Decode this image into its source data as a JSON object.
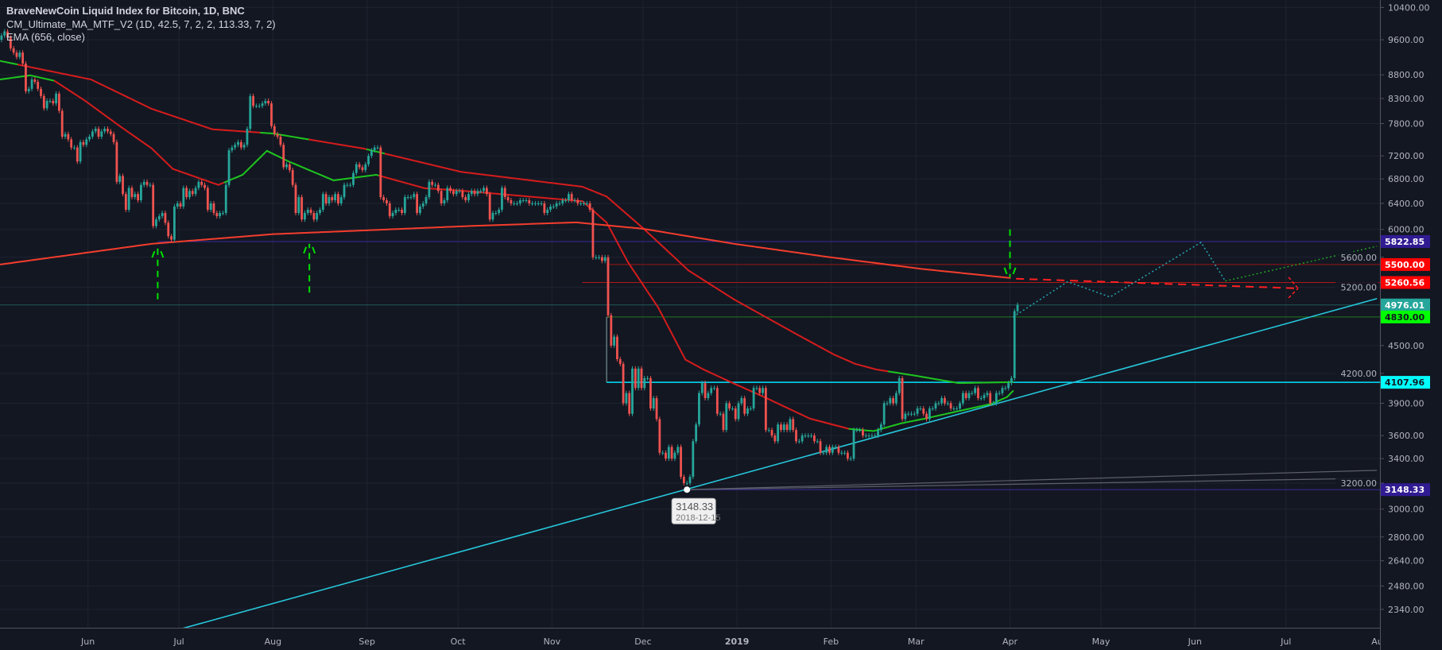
{
  "legend": {
    "title": "BraveNewCoin Liquid Index for Bitcoin, 1D, BNC",
    "indicator1": "CM_Ultimate_MA_MTF_V2 (1D, 42.5, 7, 2, 2, 113.33, 7, 2)",
    "indicator2": "EMA (656, close)"
  },
  "colors": {
    "background": "#131722",
    "grid": "#1f2330",
    "up": "#26a69a",
    "down": "#ef5350",
    "ma_red": "#d41c1c",
    "ema_red": "#f23d2d",
    "ma_green": "#1ec41e",
    "trendline": "#26c6da",
    "axis_text": "#b2b5be"
  },
  "chart_data": {
    "type": "candlestick",
    "title": "BraveNewCoin Liquid Index for Bitcoin, 1D, BNC",
    "y_scale": "log",
    "ylim": [
      2236,
      10594
    ],
    "xlim": [
      "2018-05-03",
      "2019-07-31"
    ],
    "grid": true,
    "y_ticks": [
      "10400.00",
      "9600.00",
      "8800.00",
      "8300.00",
      "7800.00",
      "7200.00",
      "6800.00",
      "6400.00",
      "6000.00",
      "5600.00",
      "5200.00",
      "4500.00",
      "4200.00",
      "3900.00",
      "3600.00",
      "3400.00",
      "3200.00",
      "3000.00",
      "2800.00",
      "2640.00",
      "2480.00",
      "2340.00"
    ],
    "x_ticks": [
      {
        "date": "2018-06-01",
        "label": "Jun"
      },
      {
        "date": "2018-07-01",
        "label": "Jul"
      },
      {
        "date": "2018-08-01",
        "label": "Aug"
      },
      {
        "date": "2018-09-01",
        "label": "Sep"
      },
      {
        "date": "2018-10-01",
        "label": "Oct"
      },
      {
        "date": "2018-11-01",
        "label": "Nov"
      },
      {
        "date": "2018-12-01",
        "label": "Dec"
      },
      {
        "date": "2019-01-01",
        "label": "2019",
        "bold": true
      },
      {
        "date": "2019-02-01",
        "label": "Feb"
      },
      {
        "date": "2019-03-01",
        "label": "Mar"
      },
      {
        "date": "2019-04-01",
        "label": "Apr"
      },
      {
        "date": "2019-05-01",
        "label": "May"
      },
      {
        "date": "2019-06-01",
        "label": "Jun"
      },
      {
        "date": "2019-07-01",
        "label": "Jul"
      },
      {
        "date": "2019-08-01",
        "label": "Aug"
      }
    ],
    "candles": {
      "start": "2018-05-03",
      "first_open": 9600,
      "close": [
        9700,
        9800,
        9650,
        9400,
        9300,
        9200,
        9300,
        9050,
        8450,
        8500,
        8700,
        8650,
        8500,
        8350,
        8100,
        8250,
        8250,
        8200,
        8400,
        8050,
        7550,
        7600,
        7500,
        7350,
        7350,
        7100,
        7450,
        7400,
        7500,
        7550,
        7650,
        7700,
        7550,
        7650,
        7700,
        7650,
        7600,
        7450,
        6750,
        6850,
        6550,
        6300,
        6650,
        6500,
        6550,
        6450,
        6700,
        6750,
        6700,
        6700,
        6050,
        6150,
        6200,
        6250,
        6100,
        5900,
        5850,
        6350,
        6400,
        6350,
        6650,
        6500,
        6600,
        6550,
        6650,
        6750,
        6700,
        6650,
        6300,
        6400,
        6250,
        6200,
        6250,
        6250,
        6700,
        7300,
        7350,
        7400,
        7450,
        7350,
        7400,
        7700,
        8350,
        8150,
        8150,
        8150,
        8200,
        8250,
        8200,
        7750,
        7600,
        7550,
        7400,
        7000,
        7050,
        6950,
        6700,
        6250,
        6500,
        6150,
        6250,
        6300,
        6250,
        6150,
        6250,
        6300,
        6550,
        6400,
        6500,
        6450,
        6550,
        6400,
        6500,
        6700,
        6700,
        6700,
        6900,
        7050,
        7000,
        6950,
        7050,
        7200,
        7300,
        7350,
        7350,
        6500,
        6450,
        6400,
        6200,
        6250,
        6300,
        6300,
        6250,
        6500,
        6500,
        6500,
        6550,
        6250,
        6350,
        6400,
        6500,
        6750,
        6700,
        6700,
        6600,
        6400,
        6450,
        6650,
        6600,
        6550,
        6600,
        6600,
        6500,
        6450,
        6550,
        6600,
        6550,
        6600,
        6600,
        6650,
        6550,
        6150,
        6250,
        6250,
        6300,
        6650,
        6500,
        6450,
        6400,
        6400,
        6400,
        6450,
        6450,
        6450,
        6400,
        6400,
        6400,
        6400,
        6400,
        6250,
        6300,
        6350,
        6350,
        6400,
        6400,
        6450,
        6450,
        6550,
        6450,
        6450,
        6400,
        6400,
        6400,
        6400,
        6300,
        5600,
        5600,
        5600,
        5550,
        5600,
        4850,
        4500,
        4600,
        4350,
        4300,
        3900,
        4000,
        3800,
        4250,
        4050,
        4250,
        4050,
        4150,
        4150,
        3850,
        3950,
        3750,
        3450,
        3450,
        3400,
        3500,
        3400,
        3450,
        3500,
        3250,
        3200,
        3200,
        3250,
        3550,
        3700,
        4000,
        4100,
        3950,
        4000,
        4050,
        4050,
        3800,
        3800,
        3650,
        3900,
        3850,
        3850,
        3750,
        3900,
        3950,
        3800,
        3850,
        3850,
        4050,
        4050,
        4000,
        4050,
        3650,
        3650,
        3600,
        3550,
        3700,
        3650,
        3700,
        3650,
        3750,
        3650,
        3550,
        3550,
        3600,
        3600,
        3600,
        3600,
        3550,
        3550,
        3450,
        3450,
        3500,
        3450,
        3500,
        3500,
        3450,
        3450,
        3450,
        3400,
        3400,
        3650,
        3650,
        3650,
        3600,
        3600,
        3600,
        3600,
        3600,
        3650,
        3700,
        3900,
        3900,
        3950,
        3900,
        4000,
        4150,
        3750,
        3800,
        3800,
        3800,
        3800,
        3850,
        3850,
        3800,
        3750,
        3850,
        3850,
        3900,
        3900,
        3950,
        3900,
        3900,
        3850,
        3850,
        3850,
        3900,
        4000,
        3950,
        4000,
        4000,
        4050,
        3950,
        3950,
        3980,
        4000,
        3900,
        3900,
        4000,
        4000,
        4050,
        4050,
        4100,
        4150,
        4900,
        4976
      ]
    },
    "moving_averages": [
      {
        "id": "ma-slow",
        "points": [
          [
            "2018-05-03",
            9110
          ],
          [
            "2018-06-02",
            8700
          ],
          [
            "2018-06-22",
            8090
          ],
          [
            "2018-07-12",
            7690
          ],
          [
            "2018-08-01",
            7610
          ],
          [
            "2018-08-31",
            7330
          ],
          [
            "2018-10-02",
            6920
          ],
          [
            "2018-11-11",
            6670
          ],
          [
            "2018-11-19",
            6510
          ],
          [
            "2018-12-01",
            6020
          ],
          [
            "2018-12-16",
            5420
          ],
          [
            "2018-12-31",
            5045
          ],
          [
            "2019-01-20",
            4640
          ],
          [
            "2019-02-02",
            4400
          ],
          [
            "2019-02-09",
            4300
          ],
          [
            "2019-02-16",
            4240
          ],
          [
            "2019-03-01",
            4175
          ],
          [
            "2019-03-15",
            4100
          ],
          [
            "2019-04-02",
            4110
          ]
        ],
        "green_ranges": [
          [
            "2018-05-03",
            "2018-05-08"
          ],
          [
            "2018-07-28",
            "2018-08-12"
          ],
          [
            "2018-09-01",
            "2018-09-06"
          ],
          [
            "2019-02-20",
            "2019-04-02"
          ]
        ]
      },
      {
        "id": "ma-fast",
        "points": [
          [
            "2018-05-03",
            8700
          ],
          [
            "2018-05-13",
            8790
          ],
          [
            "2018-05-21",
            8670
          ],
          [
            "2018-05-31",
            8255
          ],
          [
            "2018-06-12",
            7730
          ],
          [
            "2018-06-22",
            7335
          ],
          [
            "2018-06-29",
            6970
          ],
          [
            "2018-07-14",
            6700
          ],
          [
            "2018-07-22",
            6870
          ],
          [
            "2018-07-30",
            7290
          ],
          [
            "2018-08-06",
            7105
          ],
          [
            "2018-08-21",
            6775
          ],
          [
            "2018-09-04",
            6870
          ],
          [
            "2018-09-20",
            6645
          ],
          [
            "2018-10-02",
            6605
          ],
          [
            "2018-11-11",
            6435
          ],
          [
            "2018-11-19",
            6105
          ],
          [
            "2018-11-26",
            5535
          ],
          [
            "2018-12-06",
            4945
          ],
          [
            "2018-12-15",
            4345
          ],
          [
            "2018-12-21",
            4240
          ],
          [
            "2018-12-31",
            4095
          ],
          [
            "2019-01-10",
            3960
          ],
          [
            "2019-01-25",
            3755
          ],
          [
            "2019-02-07",
            3660
          ],
          [
            "2019-02-15",
            3640
          ],
          [
            "2019-02-24",
            3710
          ],
          [
            "2019-03-04",
            3755
          ],
          [
            "2019-03-26",
            3895
          ],
          [
            "2019-03-31",
            3960
          ],
          [
            "2019-04-02",
            4020
          ]
        ],
        "green_ranges": [
          [
            "2018-05-03",
            "2018-05-20"
          ],
          [
            "2018-07-16",
            "2018-09-04"
          ],
          [
            "2019-02-07",
            "2019-04-02"
          ]
        ]
      },
      {
        "id": "ema-656",
        "points": [
          [
            "2018-05-03",
            5500
          ],
          [
            "2018-06-22",
            5790
          ],
          [
            "2018-08-01",
            5930
          ],
          [
            "2018-08-31",
            5985
          ],
          [
            "2018-10-07",
            6055
          ],
          [
            "2018-11-09",
            6105
          ],
          [
            "2018-12-01",
            6010
          ],
          [
            "2018-12-31",
            5790
          ],
          [
            "2019-01-30",
            5610
          ],
          [
            "2019-03-03",
            5440
          ],
          [
            "2019-04-01",
            5320
          ]
        ],
        "green_ranges": []
      }
    ],
    "price_levels": [
      {
        "label": "5822.85",
        "price": 5822.85,
        "from": "2018-06-24",
        "color": "#3a2a9a",
        "tag_bg": "#311b92",
        "tag_fg": "#ffffff"
      },
      {
        "label": "5500.00",
        "price": 5500,
        "from": "2018-11-19",
        "color": "#9c1414",
        "tag_bg": "#ff0000",
        "tag_fg": "#ffffff"
      },
      {
        "label": "5260.56",
        "price": 5260.56,
        "from": "2018-11-11",
        "color": "#b01818",
        "tag_bg": "#ff0000",
        "tag_fg": "#ffffff"
      },
      {
        "label": "4976.01",
        "price": 4976.01,
        "from": "2018-05-03",
        "color": "#1d5a57",
        "tag_bg": "#26a69a",
        "tag_fg": "#ffffff"
      },
      {
        "label": "4830.00",
        "price": 4830,
        "from": "2018-11-19",
        "color": "#1f7a1f",
        "tag_bg": "#00ff00",
        "tag_fg": "#131722"
      },
      {
        "label": "4107.96",
        "price": 4107.96,
        "from": "2018-11-19",
        "color": "#00e5ff",
        "tag_bg": "#00ffff",
        "tag_fg": "#131722"
      },
      {
        "label": "3148.33",
        "price": 3148.33,
        "from": "2018-12-15",
        "color": "#3a2a9a",
        "tag_bg": "#311b92",
        "tag_fg": "#ffffff"
      }
    ],
    "trendline": [
      [
        "2018-06-30",
        2222
      ],
      [
        "2019-07-31",
        5055
      ]
    ],
    "gray_lines": [
      [
        [
          "2018-12-15",
          3148
        ],
        [
          "2019-07-31",
          3303
        ]
      ],
      [
        [
          "2018-12-15",
          3148
        ],
        [
          "2019-07-31",
          3239
        ]
      ]
    ],
    "arrows": [
      {
        "date": "2018-06-24",
        "from": 5045,
        "to": 5730,
        "direction": "up"
      },
      {
        "date": "2018-08-13",
        "from": 5130,
        "to": 5790,
        "direction": "up"
      },
      {
        "date": "2019-04-01",
        "from": 6000,
        "to": 5330,
        "direction": "down"
      }
    ],
    "projection_red_dashed": [
      [
        "2019-04-03",
        5310
      ],
      [
        "2019-07-05",
        5185
      ]
    ],
    "projection_teal_dotted": [
      [
        "2019-04-02",
        4830
      ],
      [
        "2019-04-20",
        5270
      ],
      [
        "2019-05-04",
        5075
      ],
      [
        "2019-06-03",
        5810
      ],
      [
        "2019-06-11",
        5280
      ]
    ],
    "projection_green_dotted": [
      [
        "2019-06-11",
        5280
      ],
      [
        "2019-07-31",
        5755
      ]
    ],
    "tooltip": {
      "price": "3148.33",
      "date": "2018-12-15",
      "value": 3148.33
    }
  }
}
